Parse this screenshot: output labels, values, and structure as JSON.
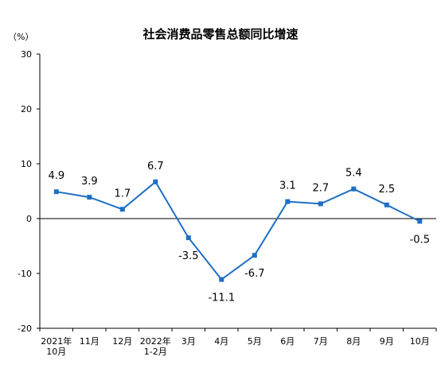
{
  "chart_data": {
    "type": "line",
    "title": "社会消费品零售总额同比增速",
    "unit_label": "（%）",
    "categories": [
      [
        "2021年",
        "10月"
      ],
      [
        "11月"
      ],
      [
        "12月"
      ],
      [
        "2022年",
        "1-2月"
      ],
      [
        "3月"
      ],
      [
        "4月"
      ],
      [
        "5月"
      ],
      [
        "6月"
      ],
      [
        "7月"
      ],
      [
        "8月"
      ],
      [
        "9月"
      ],
      [
        "10月"
      ]
    ],
    "series": [
      {
        "values": [
          4.9,
          3.9,
          1.7,
          6.7,
          -3.5,
          -11.1,
          -6.7,
          3.1,
          2.7,
          5.4,
          2.5,
          -0.5
        ],
        "labels": [
          "4.9",
          "3.9",
          "1.7",
          "6.7",
          "-3.5",
          "-11.1",
          "-6.7",
          "3.1",
          "2.7",
          "5.4",
          "2.5",
          "-0.5"
        ],
        "label_positions": [
          "above",
          "above",
          "above",
          "above",
          "below",
          "below",
          "below",
          "above",
          "above",
          "above",
          "above",
          "below"
        ]
      }
    ],
    "ylim": [
      -20,
      30
    ],
    "yticks": [
      -20,
      -10,
      0,
      10,
      20,
      30
    ],
    "grid": false,
    "colors": {
      "line": "#1f6fc4",
      "marker": "#1f6fc4",
      "axis": "#000000"
    }
  }
}
